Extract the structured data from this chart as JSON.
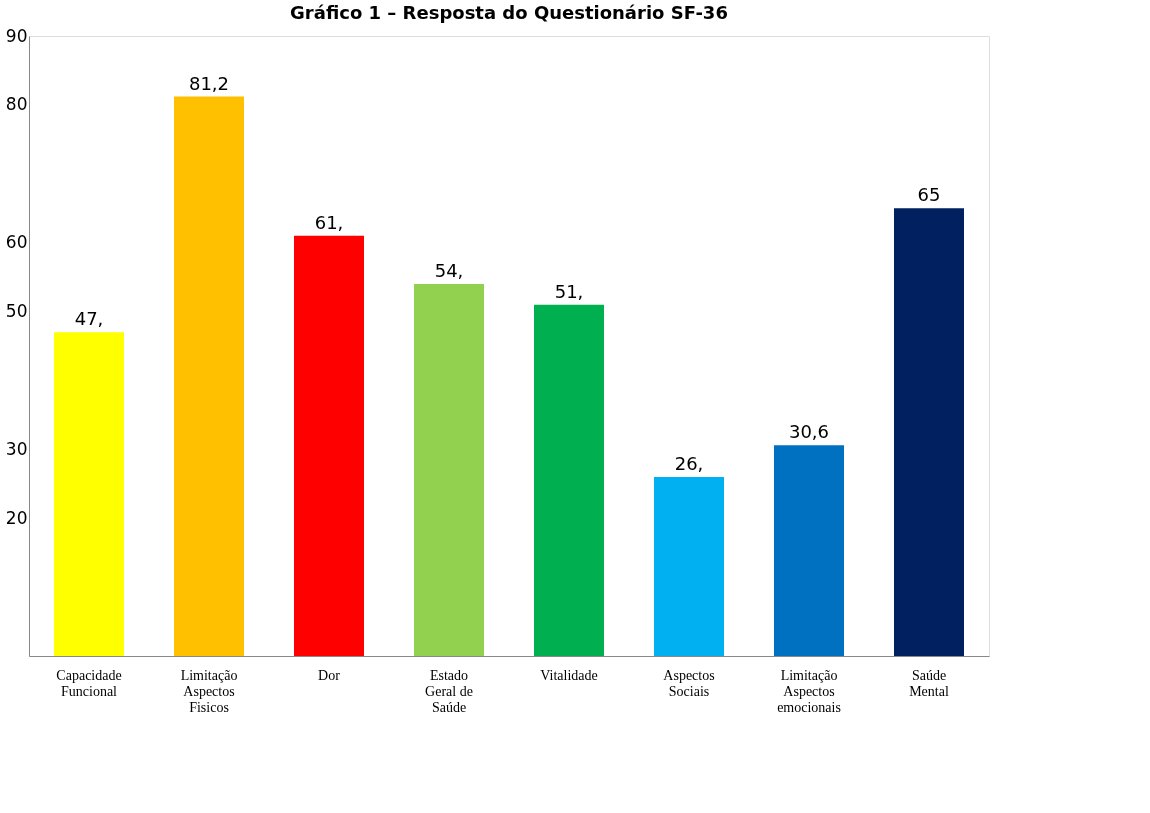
{
  "chart_data": {
    "type": "bar",
    "title": "Gráfico 1 – Resposta do Questionário SF-36",
    "categories": [
      "Capacidade\nFuncional",
      "Limitação\nAspectos\nFisicos",
      "Dor",
      "Estado\nGeral de\nSaúde",
      "Vitalidade",
      "Aspectos\nSociais",
      "Limitação\nAspectos\nemocionais",
      "Saúde\nMental"
    ],
    "values": [
      47,
      81.2,
      61,
      54,
      51,
      26,
      30.6,
      65
    ],
    "value_labels": [
      "47,",
      "81,2",
      "61,",
      "54,",
      "51,",
      "26,",
      "30,6",
      "65"
    ],
    "colors": [
      "#ffff00",
      "#ffc000",
      "#ff0000",
      "#92d050",
      "#00b050",
      "#00b0f0",
      "#0070c0",
      "#002060"
    ],
    "ylim": [
      0,
      90
    ],
    "yticks": [
      20,
      30,
      50,
      60,
      80,
      90
    ],
    "grid": false
  }
}
